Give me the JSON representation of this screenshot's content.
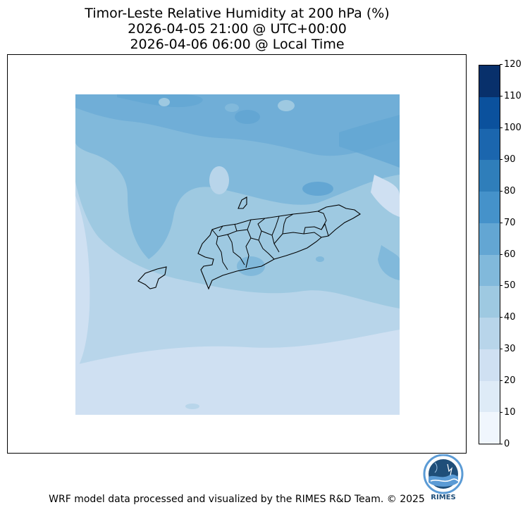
{
  "title": {
    "line1": "Timor-Leste Relative Humidity at 200 hPa (%)",
    "line2": "2026-04-05 21:00 @ UTC+00:00",
    "line3": "2026-04-06 06:00 @ Local Time"
  },
  "colorbar": {
    "min": 0,
    "max": 120,
    "ticks": [
      "0",
      "10",
      "20",
      "30",
      "40",
      "50",
      "60",
      "70",
      "80",
      "90",
      "100",
      "110",
      "120"
    ],
    "colors": [
      "#f0f6fd",
      "#deebf7",
      "#cfe0f2",
      "#b8d5ea",
      "#9ec9e1",
      "#81b9db",
      "#63a6d3",
      "#4592ca",
      "#2f7eba",
      "#1b66ae",
      "#0b519d",
      "#08306b"
    ]
  },
  "legend_placement": "right",
  "logo": {
    "text": "RIMES"
  },
  "footer": "WRF model data processed and visualized by the RIMES R&D Team. © 2025"
}
